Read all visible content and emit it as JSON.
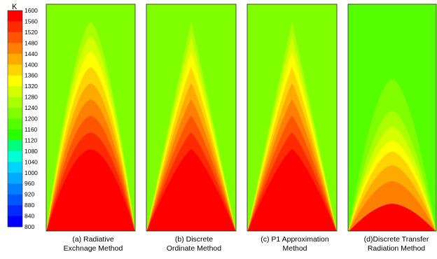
{
  "legend": {
    "unit": "K",
    "ticks": [
      "1600",
      "1560",
      "1520",
      "1480",
      "1440",
      "1400",
      "1360",
      "1320",
      "1280",
      "1240",
      "1200",
      "1160",
      "1120",
      "1080",
      "1040",
      "1000",
      "960",
      "920",
      "880",
      "840",
      "800"
    ],
    "colors": [
      "#ff0000",
      "#ff2a00",
      "#ff5500",
      "#ff7f00",
      "#ffaa00",
      "#ffd400",
      "#ffff00",
      "#d4ff00",
      "#aaff00",
      "#7fff00",
      "#55ff00",
      "#2aff00",
      "#00ff7f",
      "#00ffd4",
      "#00d4ff",
      "#00aaff",
      "#007fff",
      "#0055ff",
      "#002aff",
      "#0000ff"
    ]
  },
  "panels": [
    {
      "caption": [
        "(a) Radiative",
        "Exchnage Method"
      ]
    },
    {
      "caption": [
        "(b) Discrete",
        "Ordinate Method"
      ]
    },
    {
      "caption": [
        "(c) P1 Approximation",
        "Method"
      ]
    },
    {
      "caption": [
        "(d)Discrete Transfer",
        "Radiation Method"
      ]
    }
  ],
  "chart_data": {
    "type": "heatmap",
    "title": "",
    "colorbar": {
      "unit": "K",
      "min": 800,
      "max": 1600,
      "step": 40
    },
    "subplots": [
      {
        "label": "(a) Radiative Exchnage Method",
        "top_temperature": 1240,
        "core_temperature": 1600
      },
      {
        "label": "(b) Discrete Ordinate Method",
        "top_temperature": 1240,
        "core_temperature": 1600
      },
      {
        "label": "(c) P1 Approximation Method",
        "top_temperature": 1240,
        "core_temperature": 1600
      },
      {
        "label": "(d)Discrete Transfer Radiation Method",
        "top_temperature": 1200,
        "core_temperature": 1600
      }
    ]
  }
}
